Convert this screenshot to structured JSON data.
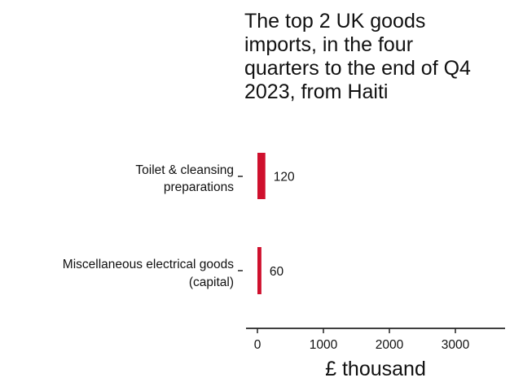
{
  "chart_data": {
    "type": "bar",
    "orientation": "horizontal",
    "title_lines": [
      "The top 2 UK goods",
      "imports, in the four",
      "quarters to the end of Q4",
      "2023, from Haiti"
    ],
    "categories": [
      [
        "Toilet & cleansing",
        "preparations"
      ],
      [
        "Miscellaneous electrical goods",
        "(capital)"
      ]
    ],
    "values": [
      120,
      60
    ],
    "data_labels": [
      "120",
      "60"
    ],
    "xlabel": "£ thousand",
    "ylabel": "",
    "xlim": [
      0,
      3800
    ],
    "xticks": [
      0,
      1000,
      2000,
      3000
    ],
    "xtick_labels": [
      "0",
      "1000",
      "2000",
      "3000"
    ],
    "grid": false,
    "legend": "none",
    "bar_color": "#cf102d"
  }
}
